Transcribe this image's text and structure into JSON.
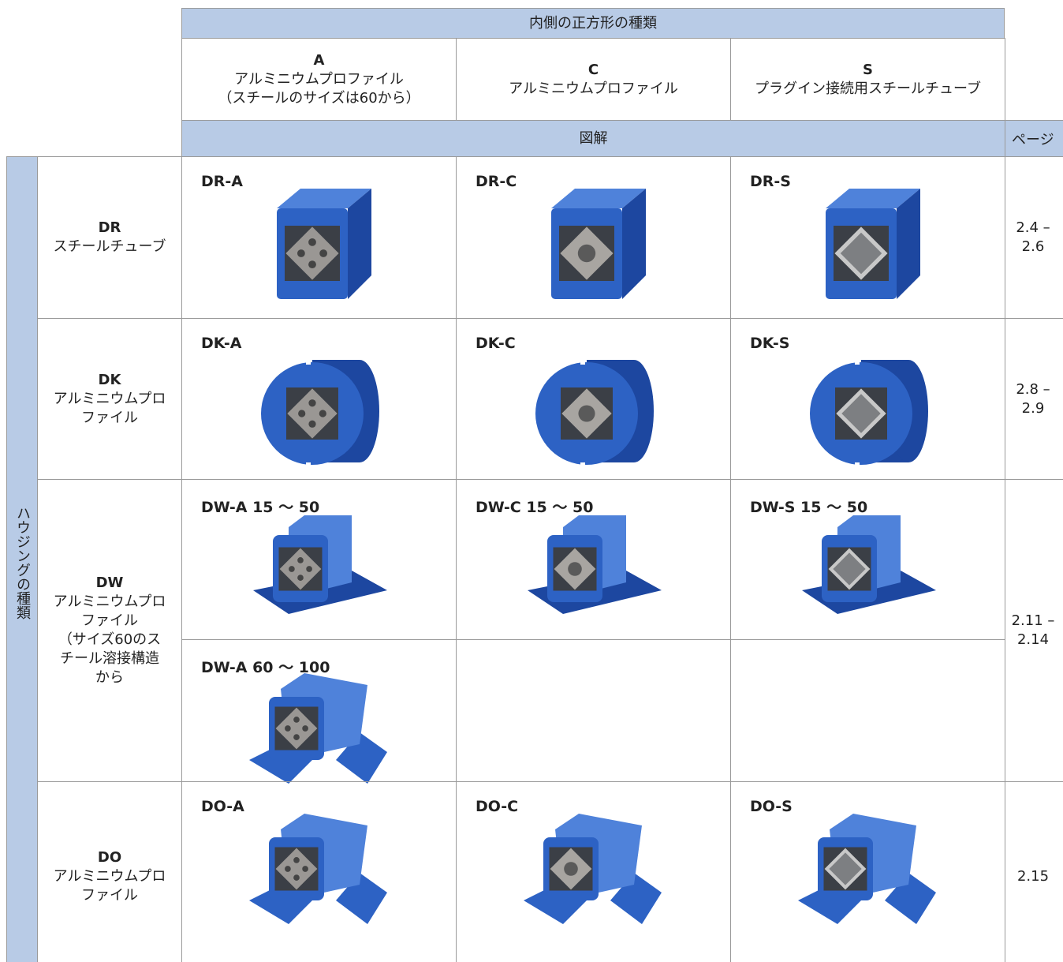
{
  "header": {
    "group_title": "内側の正方形の種類",
    "columns": [
      {
        "code": "A",
        "lines": [
          "アルミニウムプロファイル",
          "（スチールのサイズは60から）"
        ]
      },
      {
        "code": "C",
        "lines": [
          "アルミニウムプロファイル"
        ]
      },
      {
        "code": "S",
        "lines": [
          "プラグイン接続用スチールチューブ"
        ]
      }
    ],
    "illustration": "図解",
    "page": "ページ"
  },
  "side_label": "ハウジングの種類",
  "rows": [
    {
      "code": "DR",
      "lines": [
        "スチールチューブ"
      ],
      "cells": [
        "DR-A",
        "DR-C",
        "DR-S"
      ],
      "pages": [
        "2.4 –",
        "2.6"
      ]
    },
    {
      "code": "DK",
      "lines": [
        "アルミニウムプロ",
        "ファイル"
      ],
      "cells": [
        "DK-A",
        "DK-C",
        "DK-S"
      ],
      "pages": [
        "2.8 –",
        "2.9"
      ]
    },
    {
      "code": "DW",
      "lines": [
        "アルミニウムプロ",
        "ファイル",
        "（サイズ60のス",
        "チール溶接構造",
        "から"
      ],
      "cells": [
        "DW-A 15 ～ 50",
        "DW-C 15 ～ 50",
        "DW-S 15 ～ 50"
      ],
      "extra_cells": [
        "DW-A 60 ～ 100"
      ],
      "pages": [
        "2.11 –",
        "2.14"
      ]
    },
    {
      "code": "DO",
      "lines": [
        "アルミニウムプロ",
        "ファイル"
      ],
      "cells": [
        "DO-A",
        "DO-C",
        "DO-S"
      ],
      "pages": [
        "2.15"
      ]
    }
  ]
}
